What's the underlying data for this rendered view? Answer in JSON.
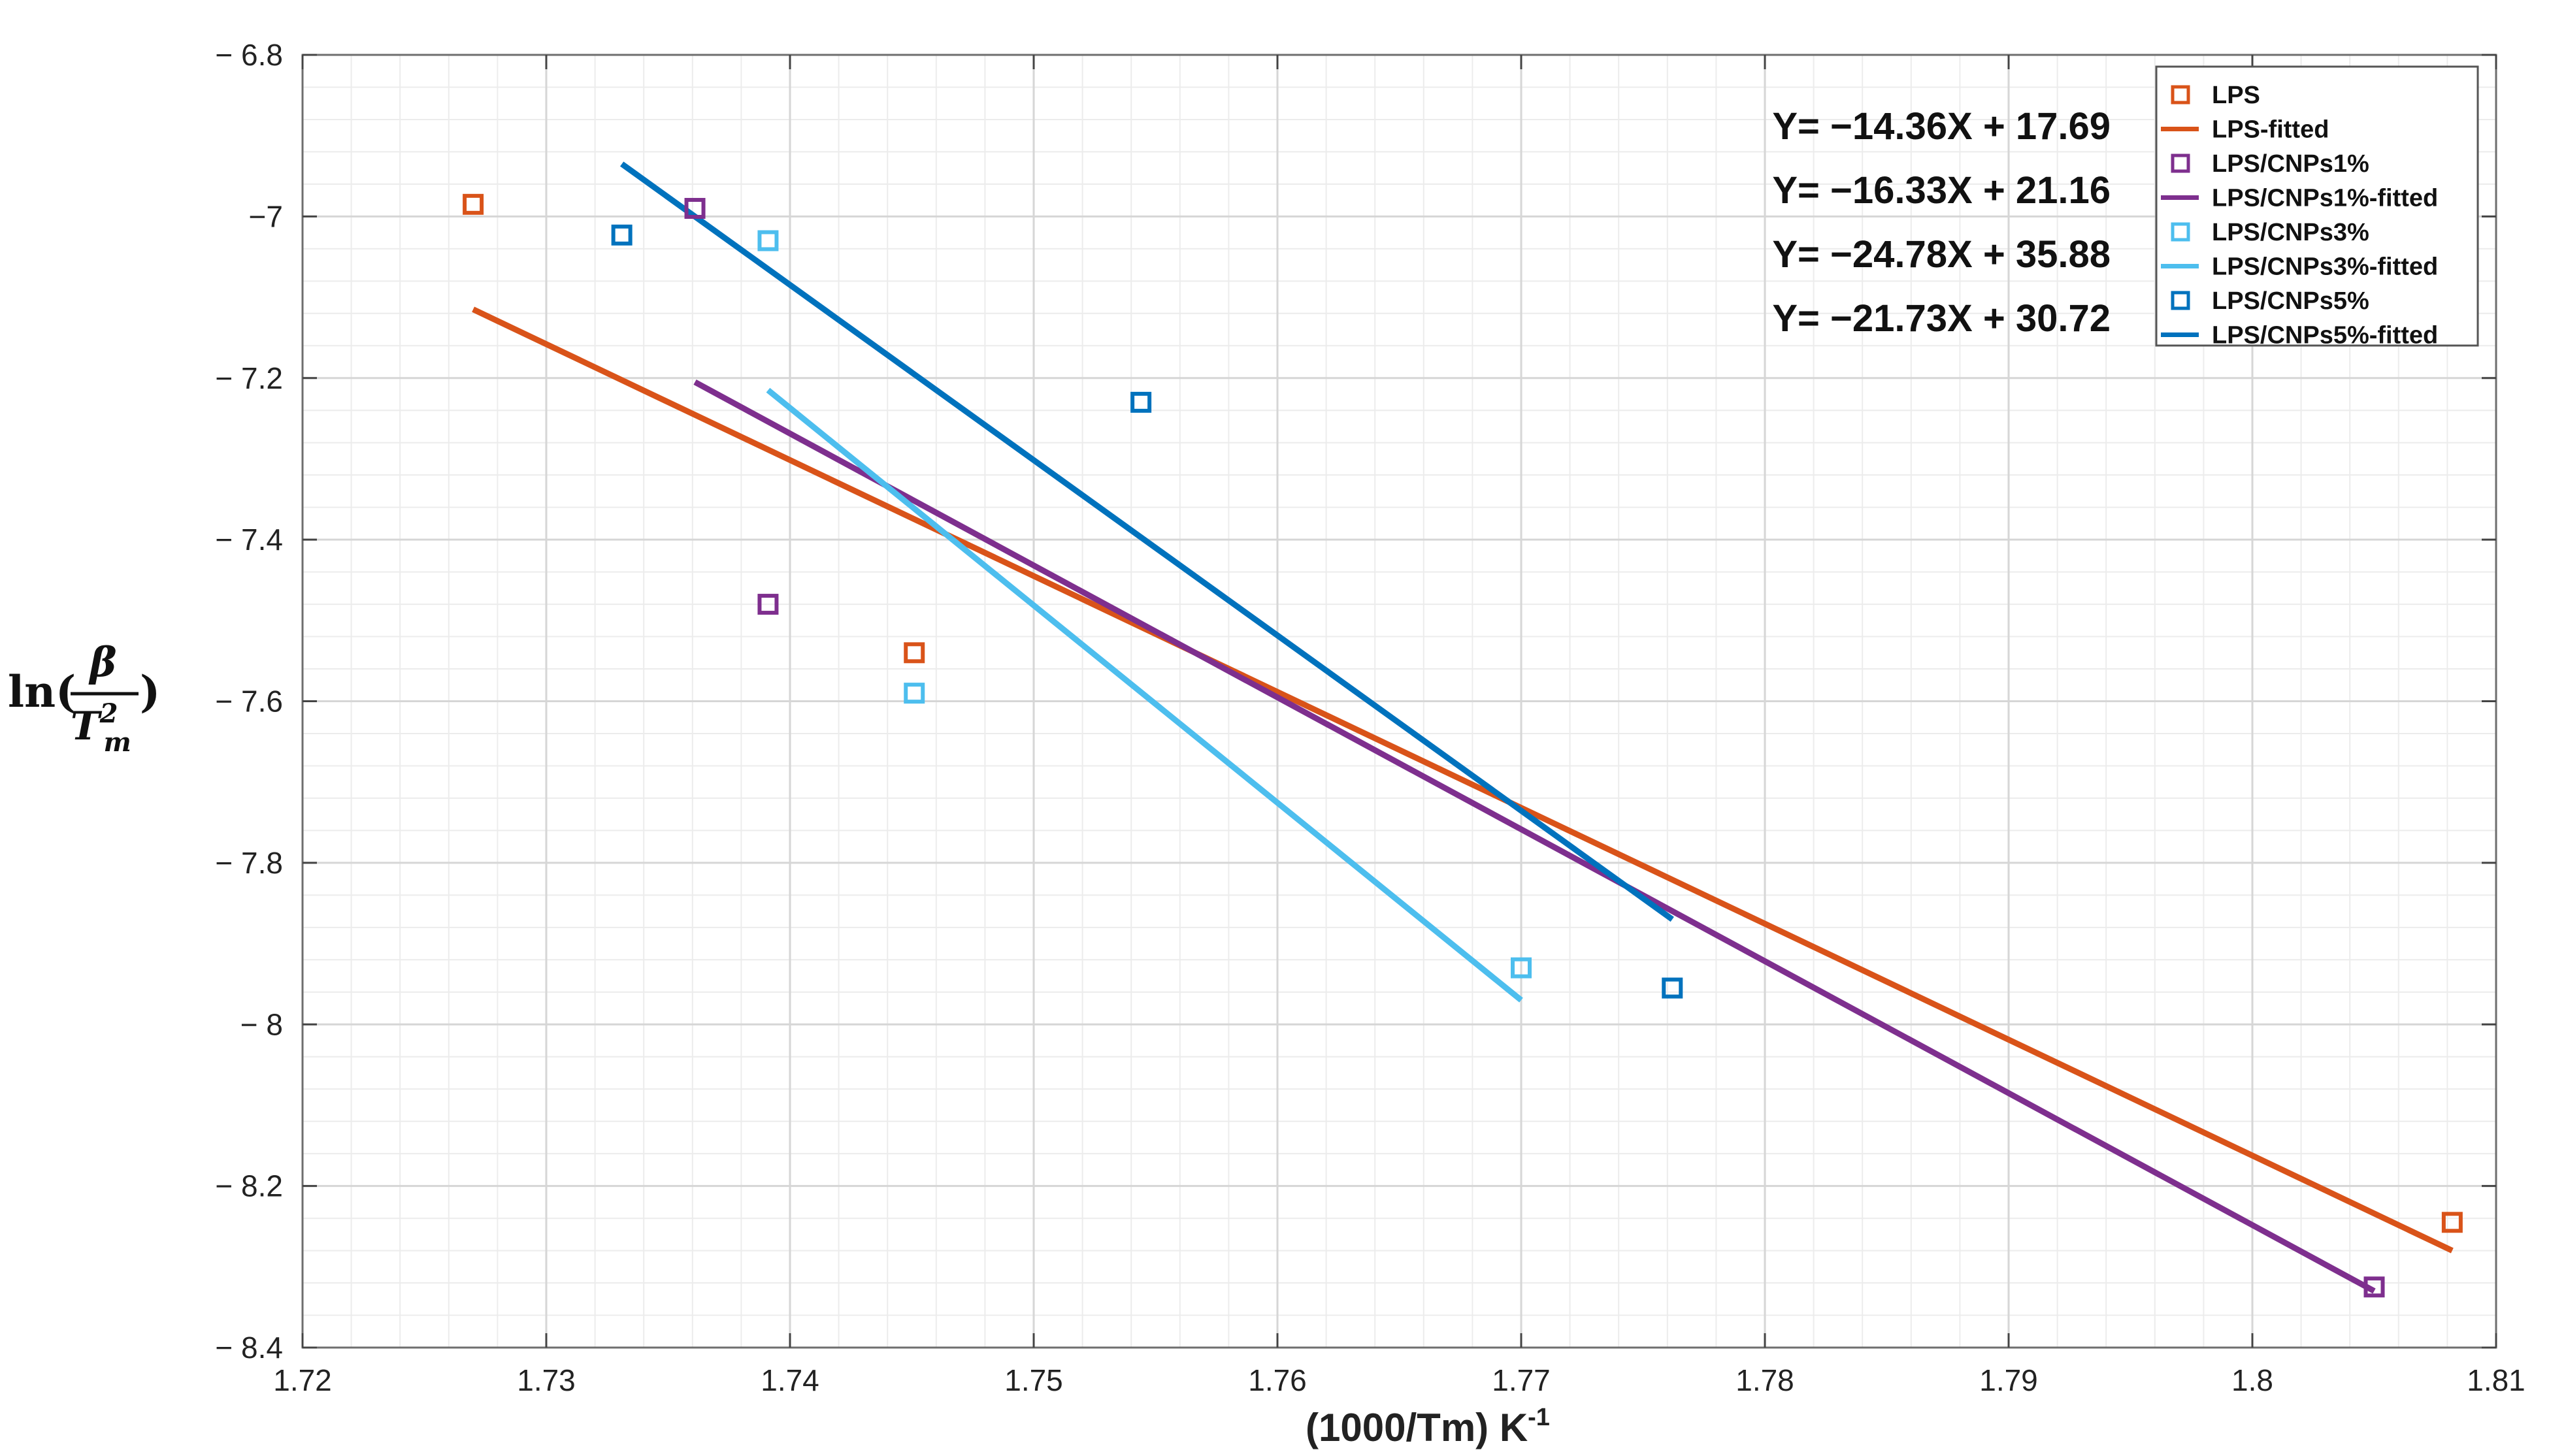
{
  "chart_data": {
    "type": "scatter",
    "title": "",
    "xlabel": "(1000/Tm) K",
    "xlabel_sup": "-1",
    "ylabel": {
      "prefix": "ln(",
      "numerator": "β",
      "denominator_base": "T",
      "denominator_sup": "2",
      "denominator_sub": "m",
      "suffix": ")"
    },
    "xlim": [
      1.72,
      1.81
    ],
    "ylim": [
      -8.4,
      -6.8
    ],
    "x_ticks": [
      1.72,
      1.73,
      1.74,
      1.75,
      1.76,
      1.77,
      1.78,
      1.79,
      1.8,
      1.81
    ],
    "x_tick_labels": [
      "1.72",
      "1.73",
      "1.74",
      "1.75",
      "1.76",
      "1.77",
      "1.78",
      "1.79",
      "1.8",
      "1.81"
    ],
    "y_ticks": [
      -6.8,
      -7.0,
      -7.2,
      -7.4,
      -7.6,
      -7.8,
      -8.0,
      -8.2,
      -8.4
    ],
    "y_tick_labels": [
      "− 6.8",
      "−7",
      "− 7.2",
      "− 7.4",
      "− 7.6",
      "− 7.8",
      "− 8",
      "− 8.2",
      "− 8.4"
    ],
    "grid": true,
    "minor_grid": true,
    "legend_position": "top-right",
    "series": [
      {
        "name": "LPS",
        "fit_name": "LPS-fitted",
        "color": "#D95319",
        "points": [
          [
            1.727,
            -6.985
          ],
          [
            1.7451,
            -7.54
          ],
          [
            1.8082,
            -8.245
          ]
        ],
        "fit": [
          [
            1.727,
            -7.115
          ],
          [
            1.8082,
            -8.28
          ]
        ]
      },
      {
        "name": "LPS/CNPs1%",
        "fit_name": "LPS/CNPs1%-fitted",
        "color": "#7E2F8E",
        "points": [
          [
            1.7361,
            -6.99
          ],
          [
            1.7391,
            -7.48
          ],
          [
            1.805,
            -8.325
          ]
        ],
        "fit": [
          [
            1.7361,
            -7.205
          ],
          [
            1.805,
            -8.33
          ]
        ]
      },
      {
        "name": "LPS/CNPs3%",
        "fit_name": "LPS/CNPs3%-fitted",
        "color": "#4DBEEE",
        "points": [
          [
            1.7391,
            -7.03
          ],
          [
            1.7451,
            -7.59
          ],
          [
            1.77,
            -7.93
          ]
        ],
        "fit": [
          [
            1.7391,
            -7.215
          ],
          [
            1.77,
            -7.97
          ]
        ]
      },
      {
        "name": "LPS/CNPs5%",
        "fit_name": "LPS/CNPs5%-fitted",
        "color": "#0072BD",
        "points": [
          [
            1.7331,
            -7.023
          ],
          [
            1.7544,
            -7.23
          ],
          [
            1.7762,
            -7.955
          ]
        ],
        "fit": [
          [
            1.7331,
            -6.935
          ],
          [
            1.7762,
            -7.87
          ]
        ]
      }
    ],
    "annotations": [
      "Y= −14.36X + 17.69",
      "Y= −16.33X + 21.16",
      "Y= −24.78X + 35.88",
      "Y= −21.73X + 30.72"
    ]
  }
}
